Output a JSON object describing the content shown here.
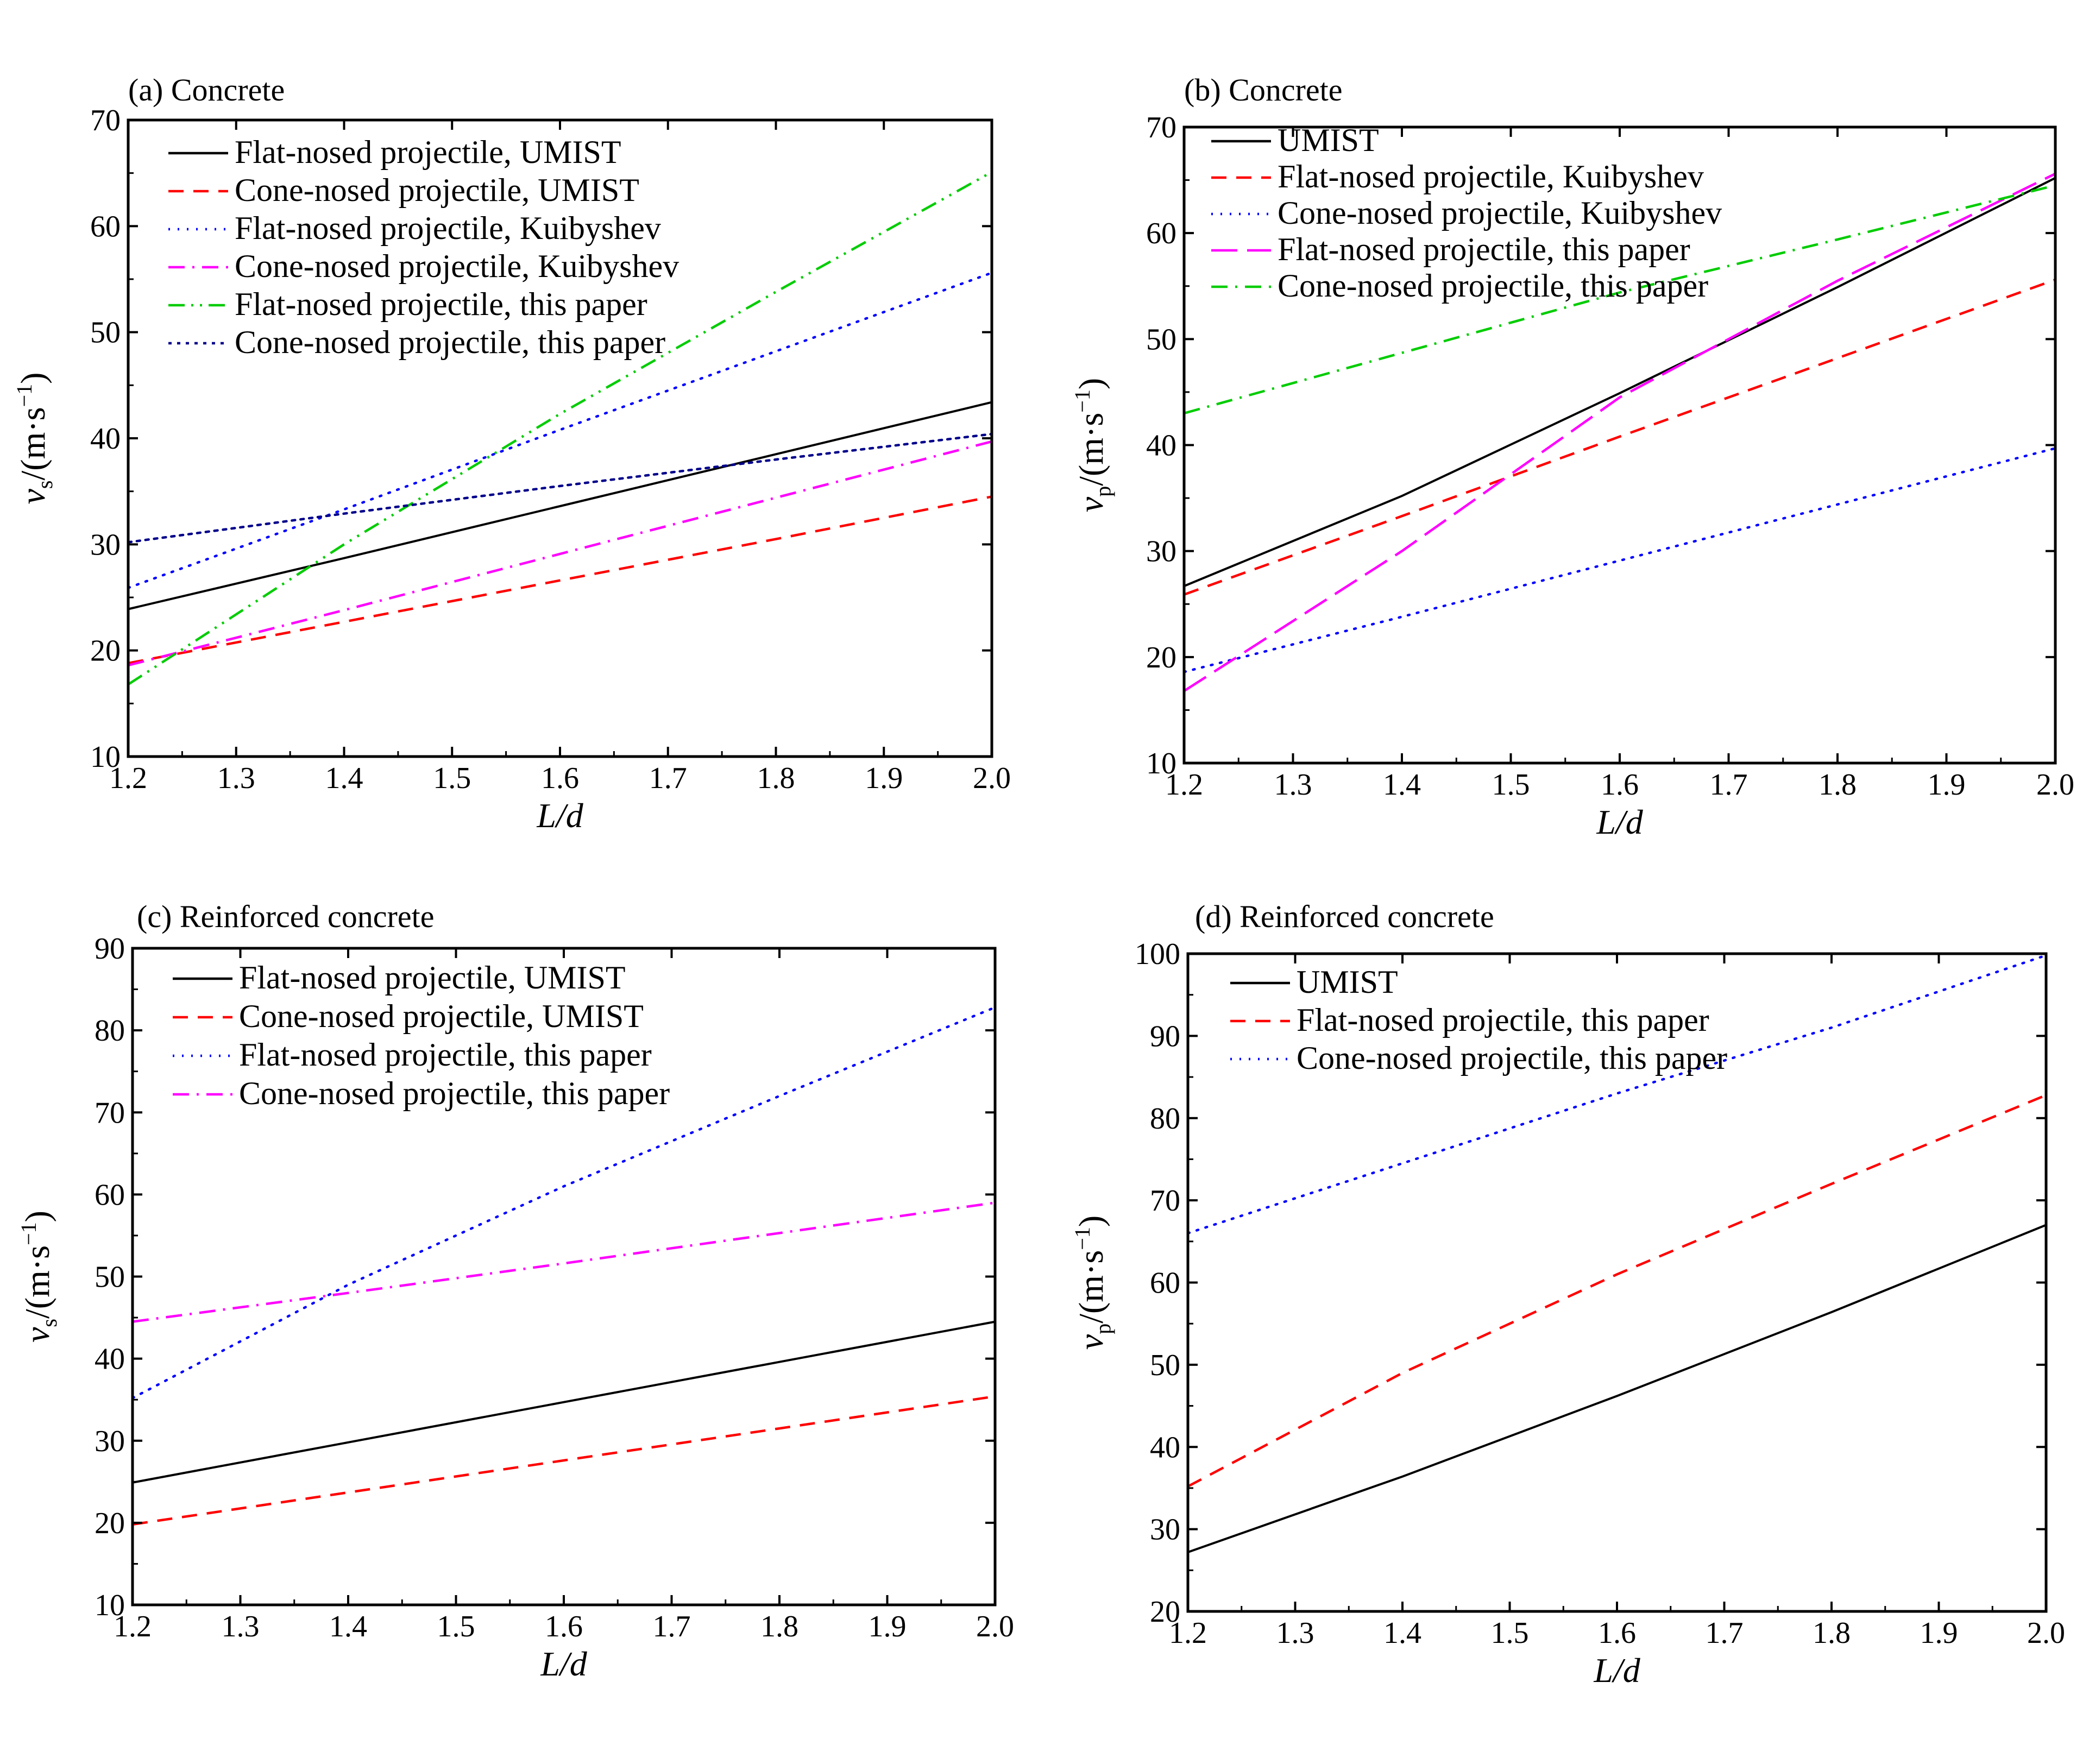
{
  "figure": {
    "panels": [
      {
        "title": "(a) Concrete",
        "xlabel": "L/d",
        "ylabel_sym": "v",
        "ylabel_sub": "s",
        "ylabel_unit": "/(m·s",
        "ylabel_exp": "−1",
        "ylabel_close": ")"
      },
      {
        "title": "(b) Concrete",
        "xlabel": "L/d",
        "ylabel_sym": "v",
        "ylabel_sub": "p",
        "ylabel_unit": "/(m·s",
        "ylabel_exp": "−1",
        "ylabel_close": ")"
      },
      {
        "title": "(c) Reinforced concrete",
        "xlabel": "L/d",
        "ylabel_sym": "v",
        "ylabel_sub": "s",
        "ylabel_unit": "/(m·s",
        "ylabel_exp": "−1",
        "ylabel_close": ")"
      },
      {
        "title": "(d) Reinforced concrete",
        "xlabel": "L/d",
        "ylabel_sym": "v",
        "ylabel_sub": "p",
        "ylabel_unit": "/(m·s",
        "ylabel_exp": "−1",
        "ylabel_close": ")"
      }
    ]
  },
  "chart_data": [
    {
      "type": "line",
      "title": "(a) Concrete",
      "xlabel": "L/d",
      "ylabel": "vs/(m·s−1)",
      "xlim": [
        1.2,
        2.0
      ],
      "ylim": [
        10,
        70
      ],
      "xticks": [
        "1.2",
        "1.3",
        "1.4",
        "1.5",
        "1.6",
        "1.7",
        "1.8",
        "1.9",
        "2.0"
      ],
      "yticks": [
        "10",
        "20",
        "30",
        "40",
        "50",
        "60",
        "70"
      ],
      "x": [
        1.2,
        1.4,
        1.6,
        1.8,
        2.0
      ],
      "series": [
        {
          "name": "Flat-nosed projectile, UMIST",
          "color": "#000000",
          "dash": "solid",
          "values": [
            23.9,
            28.7,
            33.6,
            38.5,
            43.4
          ]
        },
        {
          "name": "Cone-nosed projectile, UMIST",
          "color": "#ff0000",
          "dash": "dash",
          "values": [
            18.8,
            22.7,
            26.6,
            30.5,
            34.5
          ]
        },
        {
          "name": "Flat-nosed projectile, Kuibyshev",
          "color": "#0000ff",
          "dash": "dot",
          "values": [
            25.9,
            33.3,
            40.8,
            48.2,
            55.6
          ]
        },
        {
          "name": "Cone-nosed projectile, Kuibyshev",
          "color": "#ff00ff",
          "dash": "dashdot",
          "values": [
            18.6,
            23.8,
            29.1,
            34.4,
            39.7
          ]
        },
        {
          "name": "Flat-nosed projectile, this paper",
          "color": "#00cc00",
          "dash": "dashdotdot",
          "values": [
            16.8,
            30.0,
            42.3,
            53.8,
            65.1
          ]
        },
        {
          "name": "Cone-nosed projectile, this paper",
          "color": "#00008b",
          "dash": "shortdot",
          "values": [
            30.2,
            32.9,
            35.5,
            38.0,
            40.4
          ]
        }
      ]
    },
    {
      "type": "line",
      "title": "(b) Concrete",
      "xlabel": "L/d",
      "ylabel": "vp/(m·s−1)",
      "xlim": [
        1.2,
        2.0
      ],
      "ylim": [
        10,
        70
      ],
      "xticks": [
        "1.2",
        "1.3",
        "1.4",
        "1.5",
        "1.6",
        "1.7",
        "1.8",
        "1.9",
        "2.0"
      ],
      "yticks": [
        "10",
        "20",
        "30",
        "40",
        "50",
        "60",
        "70"
      ],
      "x": [
        1.2,
        1.4,
        1.6,
        1.8,
        2.0
      ],
      "series": [
        {
          "name": "UMIST",
          "color": "#000000",
          "dash": "solid",
          "values": [
            26.7,
            35.2,
            44.9,
            54.9,
            65.2
          ]
        },
        {
          "name": "Flat-nosed projectile, Kuibyshev",
          "color": "#ff0000",
          "dash": "dash",
          "values": [
            25.9,
            33.3,
            40.8,
            48.2,
            55.6
          ]
        },
        {
          "name": "Cone-nosed projectile, Kuibyshev",
          "color": "#0000ff",
          "dash": "dot",
          "values": [
            18.6,
            23.8,
            29.1,
            34.4,
            39.7
          ]
        },
        {
          "name": "Flat-nosed projectile, this paper",
          "color": "#ff00ff",
          "dash": "longdash",
          "values": [
            16.8,
            30.0,
            44.5,
            55.5,
            65.6
          ]
        },
        {
          "name": "Cone-nosed projectile, this paper",
          "color": "#00cc00",
          "dash": "dashdot",
          "values": [
            43.0,
            48.7,
            54.4,
            59.4,
            64.5
          ]
        }
      ]
    },
    {
      "type": "line",
      "title": "(c) Reinforced concrete",
      "xlabel": "L/d",
      "ylabel": "vs/(m·s−1)",
      "xlim": [
        1.2,
        2.0
      ],
      "ylim": [
        10,
        90
      ],
      "xticks": [
        "1.2",
        "1.3",
        "1.4",
        "1.5",
        "1.6",
        "1.7",
        "1.8",
        "1.9",
        "2.0"
      ],
      "yticks": [
        "10",
        "20",
        "30",
        "40",
        "50",
        "60",
        "70",
        "80",
        "90"
      ],
      "x": [
        1.2,
        1.4,
        1.6,
        1.8,
        2.0
      ],
      "series": [
        {
          "name": "Flat-nosed projectile, UMIST",
          "color": "#000000",
          "dash": "solid",
          "values": [
            24.9,
            29.8,
            34.7,
            39.6,
            44.5
          ]
        },
        {
          "name": "Cone-nosed projectile, UMIST",
          "color": "#ff0000",
          "dash": "dash",
          "values": [
            19.8,
            23.7,
            27.6,
            31.5,
            35.4
          ]
        },
        {
          "name": "Flat-nosed projectile, this paper",
          "color": "#0000ff",
          "dash": "dot",
          "values": [
            35.2,
            49.0,
            61.0,
            72.0,
            82.8
          ]
        },
        {
          "name": "Cone-nosed projectile, this paper",
          "color": "#ff00ff",
          "dash": "dashdot",
          "values": [
            44.5,
            48.0,
            51.6,
            55.3,
            59.0
          ]
        }
      ]
    },
    {
      "type": "line",
      "title": "(d) Reinforced concrete",
      "xlabel": "L/d",
      "ylabel": "vp/(m·s−1)",
      "xlim": [
        1.2,
        2.0
      ],
      "ylim": [
        20,
        100
      ],
      "xticks": [
        "1.2",
        "1.3",
        "1.4",
        "1.5",
        "1.6",
        "1.7",
        "1.8",
        "1.9",
        "2.0"
      ],
      "yticks": [
        "20",
        "30",
        "40",
        "50",
        "60",
        "70",
        "80",
        "90",
        "100"
      ],
      "x": [
        1.2,
        1.4,
        1.6,
        1.8,
        2.0
      ],
      "series": [
        {
          "name": "UMIST",
          "color": "#000000",
          "dash": "solid",
          "values": [
            27.2,
            36.4,
            46.2,
            56.4,
            67.0
          ]
        },
        {
          "name": "Flat-nosed projectile, this paper",
          "color": "#ff0000",
          "dash": "dash",
          "values": [
            35.2,
            49.0,
            61.0,
            72.0,
            82.8
          ]
        },
        {
          "name": "Cone-nosed projectile, this paper",
          "color": "#0000ff",
          "dash": "dot",
          "values": [
            66.0,
            74.5,
            83.0,
            91.0,
            99.8
          ]
        }
      ]
    }
  ]
}
